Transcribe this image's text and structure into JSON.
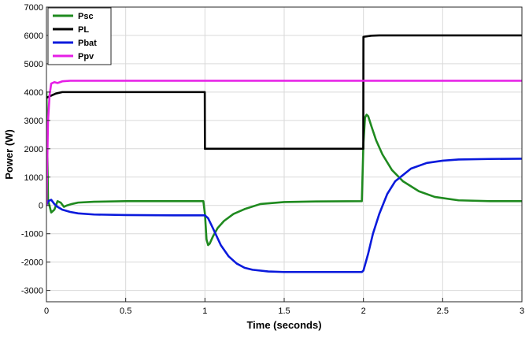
{
  "chart_data": {
    "type": "line",
    "title": "",
    "xlabel": "Time (seconds)",
    "ylabel": "Power (W)",
    "xlim": [
      0,
      3
    ],
    "ylim": [
      -3400,
      7000
    ],
    "xticks": [
      0,
      0.5,
      1,
      1.5,
      2,
      2.5,
      3
    ],
    "xtick_labels": [
      "0",
      "0.5",
      "1",
      "1.5",
      "2",
      "2.5",
      "3"
    ],
    "yticks": [
      -3000,
      -2000,
      -1000,
      0,
      1000,
      2000,
      3000,
      4000,
      5000,
      6000,
      7000
    ],
    "ytick_labels": [
      "-3000",
      "-2000",
      "-1000",
      "0",
      "1000",
      "2000",
      "3000",
      "4000",
      "5000",
      "6000",
      "7000"
    ],
    "grid": true,
    "legend_position": "top-left",
    "series": [
      {
        "name": "Psc",
        "color": "#1f8a1f",
        "x": [
          0,
          0.01,
          0.03,
          0.05,
          0.07,
          0.09,
          0.11,
          0.13,
          0.16,
          0.2,
          0.3,
          0.5,
          0.8,
          0.99,
          1.0,
          1.01,
          1.02,
          1.03,
          1.05,
          1.08,
          1.12,
          1.18,
          1.25,
          1.35,
          1.5,
          1.7,
          1.99,
          2.0,
          2.01,
          2.02,
          2.03,
          2.05,
          2.08,
          2.12,
          2.18,
          2.25,
          2.35,
          2.45,
          2.6,
          2.8,
          3.0
        ],
        "y": [
          4000,
          200,
          -250,
          -150,
          150,
          100,
          -50,
          0,
          50,
          100,
          130,
          150,
          150,
          150,
          -300,
          -1200,
          -1400,
          -1350,
          -1100,
          -800,
          -550,
          -300,
          -130,
          50,
          120,
          140,
          150,
          2200,
          3100,
          3200,
          3150,
          2800,
          2300,
          1800,
          1250,
          850,
          500,
          300,
          180,
          150,
          150
        ]
      },
      {
        "name": "PL",
        "color": "#000000",
        "x": [
          0,
          0.02,
          0.04,
          0.06,
          0.1,
          0.2,
          0.5,
          0.999,
          1.0,
          1.3,
          1.999,
          2.0,
          2.05,
          2.1,
          2.5,
          3.0
        ],
        "y": [
          3800,
          3850,
          3900,
          3950,
          4000,
          4000,
          4000,
          4000,
          2000,
          2000,
          2000,
          5950,
          5990,
          6000,
          6000,
          6000
        ]
      },
      {
        "name": "Pbat",
        "color": "#0a1adc",
        "x": [
          0,
          0.01,
          0.03,
          0.05,
          0.07,
          0.1,
          0.15,
          0.2,
          0.3,
          0.5,
          0.8,
          1.0,
          1.02,
          1.05,
          1.1,
          1.15,
          1.2,
          1.25,
          1.3,
          1.4,
          1.5,
          1.7,
          1.99,
          2.0,
          2.03,
          2.06,
          2.1,
          2.15,
          2.2,
          2.3,
          2.4,
          2.5,
          2.6,
          2.8,
          3.0
        ],
        "y": [
          0,
          150,
          200,
          50,
          -50,
          -150,
          -230,
          -280,
          -320,
          -340,
          -350,
          -350,
          -450,
          -800,
          -1400,
          -1800,
          -2050,
          -2200,
          -2270,
          -2330,
          -2350,
          -2350,
          -2350,
          -2300,
          -1700,
          -1000,
          -300,
          400,
          850,
          1300,
          1500,
          1580,
          1620,
          1640,
          1650
        ]
      },
      {
        "name": "Ppv",
        "color": "#e61ee6",
        "x": [
          0,
          0.005,
          0.01,
          0.02,
          0.03,
          0.05,
          0.07,
          0.1,
          0.15,
          0.3,
          1.0,
          2.0,
          3.0
        ],
        "y": [
          0,
          1500,
          3000,
          3900,
          4300,
          4350,
          4320,
          4380,
          4400,
          4400,
          4400,
          4400,
          4400
        ]
      }
    ]
  }
}
